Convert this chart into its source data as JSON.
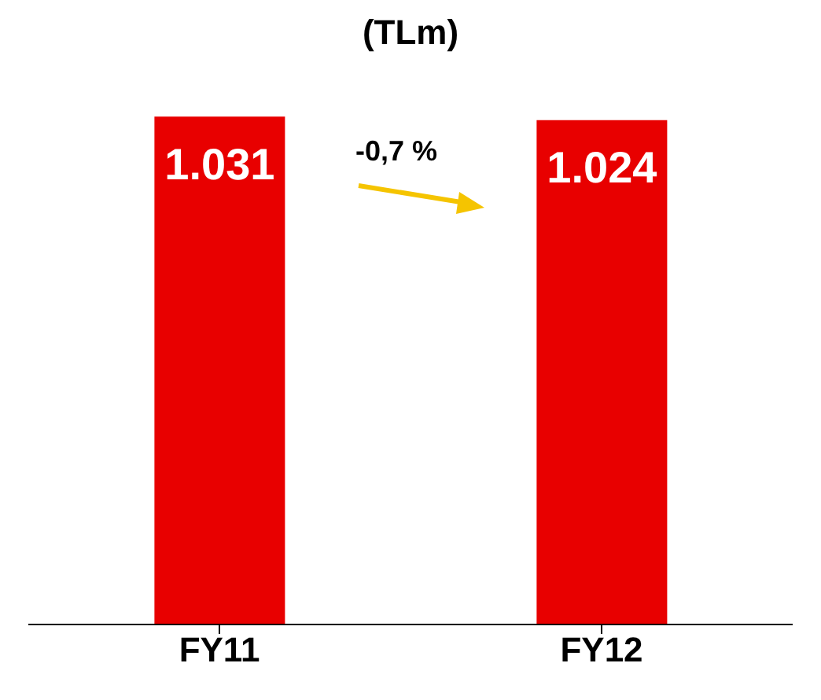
{
  "chart_data": {
    "type": "bar",
    "title": "(TLm)",
    "categories": [
      "FY11",
      "FY12"
    ],
    "values": [
      1031,
      1024
    ],
    "value_labels": [
      "1.031",
      "1.024"
    ],
    "color": "#e80000",
    "annotations": [
      "-0,7 %"
    ]
  }
}
